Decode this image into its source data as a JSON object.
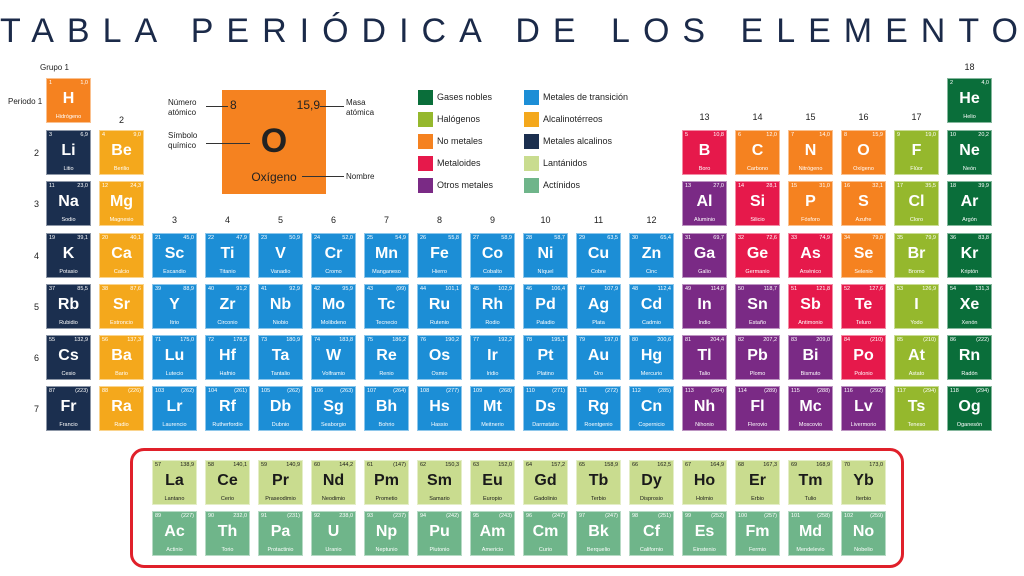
{
  "title": "TABLA PERIÓDICA DE LOS ELEMENTOS",
  "colors": {
    "noble": "#0a6e3a",
    "halogen": "#95b82d",
    "nonmetal": "#f58220",
    "metalloid": "#e6194b",
    "othermetal": "#7a2a85",
    "transition": "#1c8ed6",
    "alkaline": "#f4a81c",
    "alkali": "#1b2f4f",
    "lanthanide": "#c9dc8f",
    "actinide": "#6fb58a"
  },
  "labels": {
    "grupo": "Grupo",
    "periodo1": "Periodo 1"
  },
  "groups": [
    "1",
    "2",
    "3",
    "4",
    "5",
    "6",
    "7",
    "8",
    "9",
    "10",
    "11",
    "12",
    "13",
    "14",
    "15",
    "16",
    "17",
    "18"
  ],
  "periods": [
    "2",
    "3",
    "4",
    "5",
    "6",
    "7"
  ],
  "key": {
    "number": "8",
    "mass": "15,9",
    "symbol": "O",
    "name": "Oxígeno",
    "label_number": "Número atómico",
    "label_symbol": "Símbolo químico",
    "label_mass": "Masa atómica",
    "label_name": "Nombre"
  },
  "legend": [
    {
      "type": "noble",
      "label": "Gases nobles"
    },
    {
      "type": "halogen",
      "label": "Halógenos"
    },
    {
      "type": "nonmetal",
      "label": "No metales"
    },
    {
      "type": "metalloid",
      "label": "Metaloides"
    },
    {
      "type": "othermetal",
      "label": "Otros metales"
    },
    {
      "type": "transition",
      "label": "Metales de transición"
    },
    {
      "type": "alkaline",
      "label": "Alcalinotérreos"
    },
    {
      "type": "alkali",
      "label": "Metales alcalinos"
    },
    {
      "type": "lanthanide",
      "label": "Lantánidos"
    },
    {
      "type": "actinide",
      "label": "Actínidos"
    }
  ],
  "elements": [
    {
      "n": "1",
      "m": "1,0",
      "s": "H",
      "name": "Hidrógeno",
      "t": "nonmetal",
      "g": 1,
      "p": 1
    },
    {
      "n": "2",
      "m": "4,0",
      "s": "He",
      "name": "Helio",
      "t": "noble",
      "g": 18,
      "p": 1
    },
    {
      "n": "3",
      "m": "6,9",
      "s": "Li",
      "name": "Litio",
      "t": "alkali",
      "g": 1,
      "p": 2
    },
    {
      "n": "4",
      "m": "9,0",
      "s": "Be",
      "name": "Berilio",
      "t": "alkaline",
      "g": 2,
      "p": 2
    },
    {
      "n": "5",
      "m": "10,8",
      "s": "B",
      "name": "Boro",
      "t": "metalloid",
      "g": 13,
      "p": 2
    },
    {
      "n": "6",
      "m": "12,0",
      "s": "C",
      "name": "Carbono",
      "t": "nonmetal",
      "g": 14,
      "p": 2
    },
    {
      "n": "7",
      "m": "14,0",
      "s": "N",
      "name": "Nitrógeno",
      "t": "nonmetal",
      "g": 15,
      "p": 2
    },
    {
      "n": "8",
      "m": "15,9",
      "s": "O",
      "name": "Oxígeno",
      "t": "nonmetal",
      "g": 16,
      "p": 2
    },
    {
      "n": "9",
      "m": "19,0",
      "s": "F",
      "name": "Flúor",
      "t": "halogen",
      "g": 17,
      "p": 2
    },
    {
      "n": "10",
      "m": "20,2",
      "s": "Ne",
      "name": "Neón",
      "t": "noble",
      "g": 18,
      "p": 2
    },
    {
      "n": "11",
      "m": "23,0",
      "s": "Na",
      "name": "Sodio",
      "t": "alkali",
      "g": 1,
      "p": 3
    },
    {
      "n": "12",
      "m": "24,3",
      "s": "Mg",
      "name": "Magnesio",
      "t": "alkaline",
      "g": 2,
      "p": 3
    },
    {
      "n": "13",
      "m": "27,0",
      "s": "Al",
      "name": "Aluminio",
      "t": "othermetal",
      "g": 13,
      "p": 3
    },
    {
      "n": "14",
      "m": "28,1",
      "s": "Si",
      "name": "Silicio",
      "t": "metalloid",
      "g": 14,
      "p": 3
    },
    {
      "n": "15",
      "m": "31,0",
      "s": "P",
      "name": "Fósforo",
      "t": "nonmetal",
      "g": 15,
      "p": 3
    },
    {
      "n": "16",
      "m": "32,1",
      "s": "S",
      "name": "Azufre",
      "t": "nonmetal",
      "g": 16,
      "p": 3
    },
    {
      "n": "17",
      "m": "35,5",
      "s": "Cl",
      "name": "Cloro",
      "t": "halogen",
      "g": 17,
      "p": 3
    },
    {
      "n": "18",
      "m": "39,9",
      "s": "Ar",
      "name": "Argón",
      "t": "noble",
      "g": 18,
      "p": 3
    },
    {
      "n": "19",
      "m": "39,1",
      "s": "K",
      "name": "Potasio",
      "t": "alkali",
      "g": 1,
      "p": 4
    },
    {
      "n": "20",
      "m": "40,1",
      "s": "Ca",
      "name": "Calcio",
      "t": "alkaline",
      "g": 2,
      "p": 4
    },
    {
      "n": "21",
      "m": "45,0",
      "s": "Sc",
      "name": "Escandio",
      "t": "transition",
      "g": 3,
      "p": 4
    },
    {
      "n": "22",
      "m": "47,9",
      "s": "Ti",
      "name": "Titanio",
      "t": "transition",
      "g": 4,
      "p": 4
    },
    {
      "n": "23",
      "m": "50,9",
      "s": "V",
      "name": "Vanadio",
      "t": "transition",
      "g": 5,
      "p": 4
    },
    {
      "n": "24",
      "m": "52,0",
      "s": "Cr",
      "name": "Cromo",
      "t": "transition",
      "g": 6,
      "p": 4
    },
    {
      "n": "25",
      "m": "54,9",
      "s": "Mn",
      "name": "Manganeso",
      "t": "transition",
      "g": 7,
      "p": 4
    },
    {
      "n": "26",
      "m": "55,8",
      "s": "Fe",
      "name": "Hierro",
      "t": "transition",
      "g": 8,
      "p": 4
    },
    {
      "n": "27",
      "m": "58,9",
      "s": "Co",
      "name": "Cobalto",
      "t": "transition",
      "g": 9,
      "p": 4
    },
    {
      "n": "28",
      "m": "58,7",
      "s": "Ni",
      "name": "Níquel",
      "t": "transition",
      "g": 10,
      "p": 4
    },
    {
      "n": "29",
      "m": "63,5",
      "s": "Cu",
      "name": "Cobre",
      "t": "transition",
      "g": 11,
      "p": 4
    },
    {
      "n": "30",
      "m": "65,4",
      "s": "Zn",
      "name": "Cinc",
      "t": "transition",
      "g": 12,
      "p": 4
    },
    {
      "n": "31",
      "m": "69,7",
      "s": "Ga",
      "name": "Galio",
      "t": "othermetal",
      "g": 13,
      "p": 4
    },
    {
      "n": "32",
      "m": "72,6",
      "s": "Ge",
      "name": "Germanio",
      "t": "metalloid",
      "g": 14,
      "p": 4
    },
    {
      "n": "33",
      "m": "74,9",
      "s": "As",
      "name": "Arsénico",
      "t": "metalloid",
      "g": 15,
      "p": 4
    },
    {
      "n": "34",
      "m": "79,0",
      "s": "Se",
      "name": "Selenio",
      "t": "nonmetal",
      "g": 16,
      "p": 4
    },
    {
      "n": "35",
      "m": "79,9",
      "s": "Br",
      "name": "Bromo",
      "t": "halogen",
      "g": 17,
      "p": 4
    },
    {
      "n": "36",
      "m": "83,8",
      "s": "Kr",
      "name": "Kriptón",
      "t": "noble",
      "g": 18,
      "p": 4
    },
    {
      "n": "37",
      "m": "85,5",
      "s": "Rb",
      "name": "Rubidio",
      "t": "alkali",
      "g": 1,
      "p": 5
    },
    {
      "n": "38",
      "m": "87,6",
      "s": "Sr",
      "name": "Estroncio",
      "t": "alkaline",
      "g": 2,
      "p": 5
    },
    {
      "n": "39",
      "m": "88,9",
      "s": "Y",
      "name": "Itrio",
      "t": "transition",
      "g": 3,
      "p": 5
    },
    {
      "n": "40",
      "m": "91,2",
      "s": "Zr",
      "name": "Circonio",
      "t": "transition",
      "g": 4,
      "p": 5
    },
    {
      "n": "41",
      "m": "92,9",
      "s": "Nb",
      "name": "Niobio",
      "t": "transition",
      "g": 5,
      "p": 5
    },
    {
      "n": "42",
      "m": "95,9",
      "s": "Mo",
      "name": "Molibdeno",
      "t": "transition",
      "g": 6,
      "p": 5
    },
    {
      "n": "43",
      "m": "(99)",
      "s": "Tc",
      "name": "Tecnecio",
      "t": "transition",
      "g": 7,
      "p": 5
    },
    {
      "n": "44",
      "m": "101,1",
      "s": "Ru",
      "name": "Rutenio",
      "t": "transition",
      "g": 8,
      "p": 5
    },
    {
      "n": "45",
      "m": "102,9",
      "s": "Rh",
      "name": "Rodio",
      "t": "transition",
      "g": 9,
      "p": 5
    },
    {
      "n": "46",
      "m": "106,4",
      "s": "Pd",
      "name": "Paladio",
      "t": "transition",
      "g": 10,
      "p": 5
    },
    {
      "n": "47",
      "m": "107,9",
      "s": "Ag",
      "name": "Plata",
      "t": "transition",
      "g": 11,
      "p": 5
    },
    {
      "n": "48",
      "m": "112,4",
      "s": "Cd",
      "name": "Cadmio",
      "t": "transition",
      "g": 12,
      "p": 5
    },
    {
      "n": "49",
      "m": "114,8",
      "s": "In",
      "name": "Indio",
      "t": "othermetal",
      "g": 13,
      "p": 5
    },
    {
      "n": "50",
      "m": "118,7",
      "s": "Sn",
      "name": "Estaño",
      "t": "othermetal",
      "g": 14,
      "p": 5
    },
    {
      "n": "51",
      "m": "121,8",
      "s": "Sb",
      "name": "Antimonio",
      "t": "metalloid",
      "g": 15,
      "p": 5
    },
    {
      "n": "52",
      "m": "127,6",
      "s": "Te",
      "name": "Teluro",
      "t": "metalloid",
      "g": 16,
      "p": 5
    },
    {
      "n": "53",
      "m": "126,9",
      "s": "I",
      "name": "Yodo",
      "t": "halogen",
      "g": 17,
      "p": 5
    },
    {
      "n": "54",
      "m": "131,3",
      "s": "Xe",
      "name": "Xenón",
      "t": "noble",
      "g": 18,
      "p": 5
    },
    {
      "n": "55",
      "m": "132,9",
      "s": "Cs",
      "name": "Cesio",
      "t": "alkali",
      "g": 1,
      "p": 6
    },
    {
      "n": "56",
      "m": "137,3",
      "s": "Ba",
      "name": "Bario",
      "t": "alkaline",
      "g": 2,
      "p": 6
    },
    {
      "n": "71",
      "m": "175,0",
      "s": "Lu",
      "name": "Lutecio",
      "t": "transition",
      "g": 3,
      "p": 6
    },
    {
      "n": "72",
      "m": "178,5",
      "s": "Hf",
      "name": "Hafnio",
      "t": "transition",
      "g": 4,
      "p": 6
    },
    {
      "n": "73",
      "m": "180,9",
      "s": "Ta",
      "name": "Tantalio",
      "t": "transition",
      "g": 5,
      "p": 6
    },
    {
      "n": "74",
      "m": "183,8",
      "s": "W",
      "name": "Volframio",
      "t": "transition",
      "g": 6,
      "p": 6
    },
    {
      "n": "75",
      "m": "186,2",
      "s": "Re",
      "name": "Renio",
      "t": "transition",
      "g": 7,
      "p": 6
    },
    {
      "n": "76",
      "m": "190,2",
      "s": "Os",
      "name": "Osmio",
      "t": "transition",
      "g": 8,
      "p": 6
    },
    {
      "n": "77",
      "m": "192,2",
      "s": "Ir",
      "name": "Iridio",
      "t": "transition",
      "g": 9,
      "p": 6
    },
    {
      "n": "78",
      "m": "195,1",
      "s": "Pt",
      "name": "Platino",
      "t": "transition",
      "g": 10,
      "p": 6
    },
    {
      "n": "79",
      "m": "197,0",
      "s": "Au",
      "name": "Oro",
      "t": "transition",
      "g": 11,
      "p": 6
    },
    {
      "n": "80",
      "m": "200,6",
      "s": "Hg",
      "name": "Mercurio",
      "t": "transition",
      "g": 12,
      "p": 6
    },
    {
      "n": "81",
      "m": "204,4",
      "s": "Tl",
      "name": "Talio",
      "t": "othermetal",
      "g": 13,
      "p": 6
    },
    {
      "n": "82",
      "m": "207,2",
      "s": "Pb",
      "name": "Plomo",
      "t": "othermetal",
      "g": 14,
      "p": 6
    },
    {
      "n": "83",
      "m": "209,0",
      "s": "Bi",
      "name": "Bismuto",
      "t": "othermetal",
      "g": 15,
      "p": 6
    },
    {
      "n": "84",
      "m": "(210)",
      "s": "Po",
      "name": "Polonio",
      "t": "metalloid",
      "g": 16,
      "p": 6
    },
    {
      "n": "85",
      "m": "(210)",
      "s": "At",
      "name": "Astato",
      "t": "halogen",
      "g": 17,
      "p": 6
    },
    {
      "n": "86",
      "m": "(222)",
      "s": "Rn",
      "name": "Radón",
      "t": "noble",
      "g": 18,
      "p": 6
    },
    {
      "n": "87",
      "m": "(223)",
      "s": "Fr",
      "name": "Francio",
      "t": "alkali",
      "g": 1,
      "p": 7
    },
    {
      "n": "88",
      "m": "(226)",
      "s": "Ra",
      "name": "Radio",
      "t": "alkaline",
      "g": 2,
      "p": 7
    },
    {
      "n": "103",
      "m": "(262)",
      "s": "Lr",
      "name": "Laurencio",
      "t": "transition",
      "g": 3,
      "p": 7
    },
    {
      "n": "104",
      "m": "(261)",
      "s": "Rf",
      "name": "Rutherfordio",
      "t": "transition",
      "g": 4,
      "p": 7
    },
    {
      "n": "105",
      "m": "(262)",
      "s": "Db",
      "name": "Dubnio",
      "t": "transition",
      "g": 5,
      "p": 7
    },
    {
      "n": "106",
      "m": "(263)",
      "s": "Sg",
      "name": "Seaborgio",
      "t": "transition",
      "g": 6,
      "p": 7
    },
    {
      "n": "107",
      "m": "(264)",
      "s": "Bh",
      "name": "Bohrio",
      "t": "transition",
      "g": 7,
      "p": 7
    },
    {
      "n": "108",
      "m": "(277)",
      "s": "Hs",
      "name": "Hassio",
      "t": "transition",
      "g": 8,
      "p": 7
    },
    {
      "n": "109",
      "m": "(268)",
      "s": "Mt",
      "name": "Meitnerio",
      "t": "transition",
      "g": 9,
      "p": 7
    },
    {
      "n": "110",
      "m": "(271)",
      "s": "Ds",
      "name": "Darmstatio",
      "t": "transition",
      "g": 10,
      "p": 7
    },
    {
      "n": "111",
      "m": "(272)",
      "s": "Rg",
      "name": "Roentgenio",
      "t": "transition",
      "g": 11,
      "p": 7
    },
    {
      "n": "112",
      "m": "(285)",
      "s": "Cn",
      "name": "Copernicio",
      "t": "transition",
      "g": 12,
      "p": 7
    },
    {
      "n": "113",
      "m": "(284)",
      "s": "Nh",
      "name": "Nihonio",
      "t": "othermetal",
      "g": 13,
      "p": 7
    },
    {
      "n": "114",
      "m": "(289)",
      "s": "Fl",
      "name": "Flerovio",
      "t": "othermetal",
      "g": 14,
      "p": 7
    },
    {
      "n": "115",
      "m": "(288)",
      "s": "Mc",
      "name": "Moscovio",
      "t": "othermetal",
      "g": 15,
      "p": 7
    },
    {
      "n": "116",
      "m": "(292)",
      "s": "Lv",
      "name": "Livermorio",
      "t": "othermetal",
      "g": 16,
      "p": 7
    },
    {
      "n": "117",
      "m": "(294)",
      "s": "Ts",
      "name": "Teneso",
      "t": "halogen",
      "g": 17,
      "p": 7
    },
    {
      "n": "118",
      "m": "(294)",
      "s": "Og",
      "name": "Oganesón",
      "t": "noble",
      "g": 18,
      "p": 7
    },
    {
      "n": "57",
      "m": "138,9",
      "s": "La",
      "name": "Lantano",
      "t": "lanthanide",
      "g": 1,
      "p": 8
    },
    {
      "n": "58",
      "m": "140,1",
      "s": "Ce",
      "name": "Cerio",
      "t": "lanthanide",
      "g": 2,
      "p": 8
    },
    {
      "n": "59",
      "m": "140,9",
      "s": "Pr",
      "name": "Praseodimio",
      "t": "lanthanide",
      "g": 3,
      "p": 8
    },
    {
      "n": "60",
      "m": "144,2",
      "s": "Nd",
      "name": "Neodimio",
      "t": "lanthanide",
      "g": 4,
      "p": 8
    },
    {
      "n": "61",
      "m": "(147)",
      "s": "Pm",
      "name": "Prometio",
      "t": "lanthanide",
      "g": 5,
      "p": 8
    },
    {
      "n": "62",
      "m": "150,3",
      "s": "Sm",
      "name": "Samario",
      "t": "lanthanide",
      "g": 6,
      "p": 8
    },
    {
      "n": "63",
      "m": "152,0",
      "s": "Eu",
      "name": "Europio",
      "t": "lanthanide",
      "g": 7,
      "p": 8
    },
    {
      "n": "64",
      "m": "157,2",
      "s": "Gd",
      "name": "Gadolinio",
      "t": "lanthanide",
      "g": 8,
      "p": 8
    },
    {
      "n": "65",
      "m": "158,9",
      "s": "Tb",
      "name": "Terbio",
      "t": "lanthanide",
      "g": 9,
      "p": 8
    },
    {
      "n": "66",
      "m": "162,5",
      "s": "Dy",
      "name": "Disprosio",
      "t": "lanthanide",
      "g": 10,
      "p": 8
    },
    {
      "n": "67",
      "m": "164,9",
      "s": "Ho",
      "name": "Holmio",
      "t": "lanthanide",
      "g": 11,
      "p": 8
    },
    {
      "n": "68",
      "m": "167,3",
      "s": "Er",
      "name": "Erbio",
      "t": "lanthanide",
      "g": 12,
      "p": 8
    },
    {
      "n": "69",
      "m": "168,9",
      "s": "Tm",
      "name": "Tulio",
      "t": "lanthanide",
      "g": 13,
      "p": 8
    },
    {
      "n": "70",
      "m": "173,0",
      "s": "Yb",
      "name": "Iterbio",
      "t": "lanthanide",
      "g": 14,
      "p": 8
    },
    {
      "n": "89",
      "m": "(227)",
      "s": "Ac",
      "name": "Actinio",
      "t": "actinide",
      "g": 1,
      "p": 9
    },
    {
      "n": "90",
      "m": "232,0",
      "s": "Th",
      "name": "Torio",
      "t": "actinide",
      "g": 2,
      "p": 9
    },
    {
      "n": "91",
      "m": "(231)",
      "s": "Pa",
      "name": "Protactinio",
      "t": "actinide",
      "g": 3,
      "p": 9
    },
    {
      "n": "92",
      "m": "238,0",
      "s": "U",
      "name": "Uranio",
      "t": "actinide",
      "g": 4,
      "p": 9
    },
    {
      "n": "93",
      "m": "(237)",
      "s": "Np",
      "name": "Neptunio",
      "t": "actinide",
      "g": 5,
      "p": 9
    },
    {
      "n": "94",
      "m": "(242)",
      "s": "Pu",
      "name": "Plutonio",
      "t": "actinide",
      "g": 6,
      "p": 9
    },
    {
      "n": "95",
      "m": "(243)",
      "s": "Am",
      "name": "Americio",
      "t": "actinide",
      "g": 7,
      "p": 9
    },
    {
      "n": "96",
      "m": "(247)",
      "s": "Cm",
      "name": "Curio",
      "t": "actinide",
      "g": 8,
      "p": 9
    },
    {
      "n": "97",
      "m": "(247)",
      "s": "Bk",
      "name": "Berquelio",
      "t": "actinide",
      "g": 9,
      "p": 9
    },
    {
      "n": "98",
      "m": "(251)",
      "s": "Cf",
      "name": "Californio",
      "t": "actinide",
      "g": 10,
      "p": 9
    },
    {
      "n": "99",
      "m": "(252)",
      "s": "Es",
      "name": "Einstenio",
      "t": "actinide",
      "g": 11,
      "p": 9
    },
    {
      "n": "100",
      "m": "(257)",
      "s": "Fm",
      "name": "Fermio",
      "t": "actinide",
      "g": 12,
      "p": 9
    },
    {
      "n": "101",
      "m": "(258)",
      "s": "Md",
      "name": "Mendelevio",
      "t": "actinide",
      "g": 13,
      "p": 9
    },
    {
      "n": "102",
      "m": "(259)",
      "s": "No",
      "name": "Nobelio",
      "t": "actinide",
      "g": 14,
      "p": 9
    }
  ]
}
